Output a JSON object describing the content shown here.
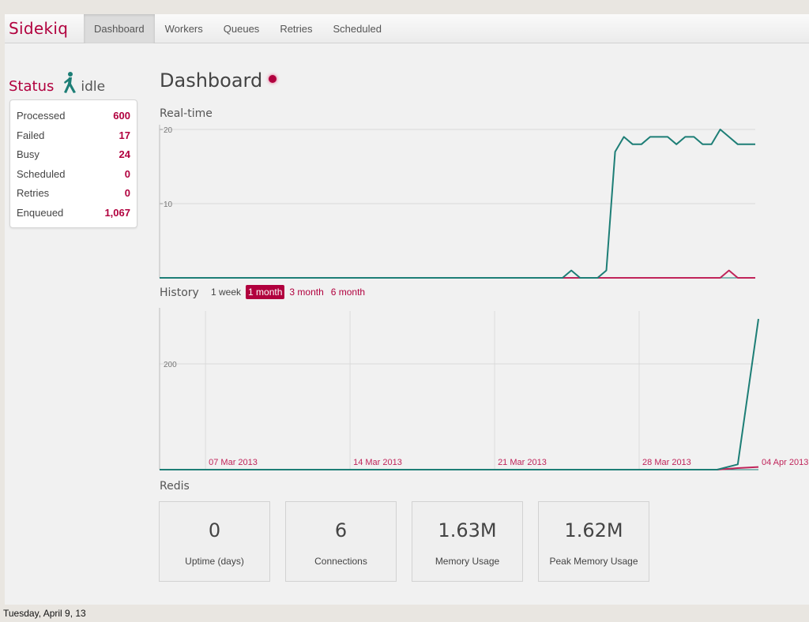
{
  "app": {
    "brand": "Sidekiq",
    "nav": [
      {
        "label": "Dashboard",
        "active": true
      },
      {
        "label": "Workers",
        "active": false
      },
      {
        "label": "Queues",
        "active": false
      },
      {
        "label": "Retries",
        "active": false
      },
      {
        "label": "Scheduled",
        "active": false
      }
    ]
  },
  "status": {
    "label": "Status",
    "value": "idle",
    "icon": "kiq-figure-icon",
    "summary": [
      {
        "label": "Processed",
        "value": "600"
      },
      {
        "label": "Failed",
        "value": "17"
      },
      {
        "label": "Busy",
        "value": "24"
      },
      {
        "label": "Scheduled",
        "value": "0"
      },
      {
        "label": "Retries",
        "value": "0"
      },
      {
        "label": "Enqueued",
        "value": "1,067"
      }
    ]
  },
  "page": {
    "title": "Dashboard",
    "realtime_title": "Real-time",
    "history_title": "History",
    "history_ranges": [
      {
        "label": "1 week",
        "active": false
      },
      {
        "label": "1 month",
        "active": true
      },
      {
        "label": "3 month",
        "active": false
      },
      {
        "label": "6 month",
        "active": false
      }
    ],
    "redis_title": "Redis"
  },
  "colors": {
    "accent": "#b1003e",
    "processed_series": "#1d7e76",
    "failed_series": "#c0245a"
  },
  "chart_data": [
    {
      "type": "line",
      "name": "realtime",
      "ylim": [
        0,
        20
      ],
      "yticks": [
        10,
        20
      ],
      "y_tick_labels": [
        "10",
        "20"
      ],
      "x": [
        0,
        1,
        2,
        3,
        4,
        5,
        6,
        7,
        8,
        9,
        10,
        11,
        12,
        13,
        14,
        15,
        16,
        17,
        18,
        19,
        20,
        21,
        22,
        23,
        24,
        25,
        26,
        27,
        28,
        29,
        30,
        31,
        32,
        33,
        34,
        35,
        36,
        37,
        38,
        39,
        40,
        41,
        42,
        43,
        44,
        45,
        46,
        47,
        48,
        49,
        50,
        51,
        52,
        53,
        54,
        55,
        56,
        57,
        58,
        59,
        60,
        61,
        62,
        63,
        64,
        65,
        66,
        67,
        68
      ],
      "series": [
        {
          "color": "#1d7e76",
          "values": [
            0,
            0,
            0,
            0,
            0,
            0,
            0,
            0,
            0,
            0,
            0,
            0,
            0,
            0,
            0,
            0,
            0,
            0,
            0,
            0,
            0,
            0,
            0,
            0,
            0,
            0,
            0,
            0,
            0,
            0,
            0,
            0,
            0,
            0,
            0,
            0,
            0,
            0,
            0,
            0,
            0,
            0,
            0,
            0,
            0,
            0,
            0,
            1,
            0,
            0,
            0,
            1,
            17,
            19,
            18,
            18,
            19,
            19,
            19,
            18,
            19,
            19,
            18,
            18,
            20,
            19,
            18,
            18,
            18
          ]
        },
        {
          "color": "#c0245a",
          "values": [
            0,
            0,
            0,
            0,
            0,
            0,
            0,
            0,
            0,
            0,
            0,
            0,
            0,
            0,
            0,
            0,
            0,
            0,
            0,
            0,
            0,
            0,
            0,
            0,
            0,
            0,
            0,
            0,
            0,
            0,
            0,
            0,
            0,
            0,
            0,
            0,
            0,
            0,
            0,
            0,
            0,
            0,
            0,
            0,
            0,
            0,
            0,
            0,
            0,
            0,
            0,
            0,
            0,
            0,
            0,
            0,
            0,
            0,
            0,
            0,
            0,
            0,
            0,
            0,
            0,
            1,
            0,
            0,
            0
          ]
        }
      ]
    },
    {
      "type": "line",
      "name": "history",
      "ylim": [
        0,
        300
      ],
      "yticks": [
        200
      ],
      "y_tick_labels": [
        "200"
      ],
      "x_tick_labels": [
        "07 Mar 2013",
        "14 Mar 2013",
        "21 Mar 2013",
        "28 Mar 2013",
        "04 Apr 2013"
      ],
      "x_tick_days": [
        1,
        8,
        15,
        22,
        29
      ],
      "x_range_days": [
        0,
        29
      ],
      "series": [
        {
          "color": "#1d7e76",
          "days": [
            0,
            27,
            28,
            29
          ],
          "values": [
            0,
            0,
            10,
            285
          ]
        },
        {
          "color": "#c0245a",
          "days": [
            0,
            27,
            28,
            29
          ],
          "values": [
            0,
            0,
            3,
            5
          ]
        }
      ]
    }
  ],
  "redis": [
    {
      "value": "0",
      "label": "Uptime (days)"
    },
    {
      "value": "6",
      "label": "Connections"
    },
    {
      "value": "1.63M",
      "label": "Memory Usage"
    },
    {
      "value": "1.62M",
      "label": "Peak Memory Usage"
    }
  ],
  "footer": {
    "date": "Tuesday, April 9, 13"
  }
}
